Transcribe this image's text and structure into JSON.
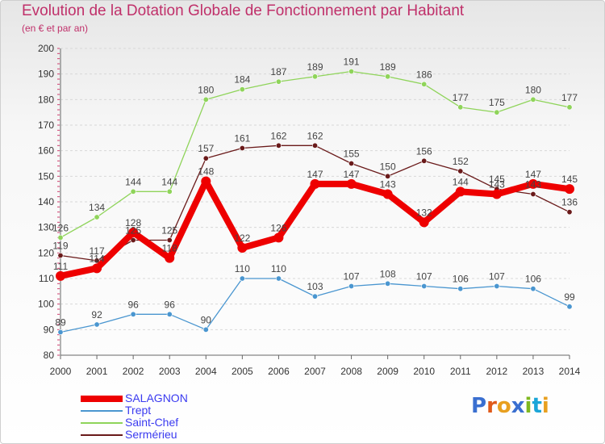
{
  "header": {
    "title": "Evolution de la Dotation Globale de Fonctionnement par Habitant",
    "subtitle": "(en € et par an)"
  },
  "logo": {
    "text": "Proxiti",
    "colors": [
      "#3a6fd0",
      "#e05a1a",
      "#e8a020",
      "#3a6fd0",
      "#7fb820",
      "#1aa5d8",
      "#e8a020"
    ]
  },
  "chart_data": {
    "type": "line",
    "x": [
      "2000",
      "2001",
      "2002",
      "2003",
      "2004",
      "2005",
      "2006",
      "2007",
      "2008",
      "2009",
      "2010",
      "2011",
      "2012",
      "2013",
      "2014"
    ],
    "ylim": [
      80,
      200
    ],
    "yticks": [
      80,
      90,
      100,
      110,
      120,
      130,
      140,
      150,
      160,
      170,
      180,
      190,
      200
    ],
    "grid": "horizontal-dashed",
    "legend_position": "bottom-left",
    "series": [
      {
        "name": "SALAGNON",
        "color": "#ee0000",
        "values": [
          111,
          114,
          128,
          118,
          148,
          122,
          126,
          147,
          147,
          143,
          132,
          144,
          143,
          147,
          145
        ]
      },
      {
        "name": "Trept",
        "color": "#4a96d0",
        "values": [
          89,
          92,
          96,
          96,
          90,
          110,
          110,
          103,
          107,
          108,
          107,
          106,
          107,
          106,
          99
        ]
      },
      {
        "name": "Saint-Chef",
        "color": "#8fd45a",
        "values": [
          126,
          134,
          144,
          144,
          180,
          184,
          187,
          189,
          191,
          189,
          186,
          177,
          175,
          180,
          177
        ]
      },
      {
        "name": "Sermérieu",
        "color": "#6a1a1a",
        "values": [
          119,
          117,
          125,
          125,
          157,
          161,
          162,
          162,
          155,
          150,
          156,
          152,
          145,
          143,
          136
        ]
      }
    ]
  }
}
